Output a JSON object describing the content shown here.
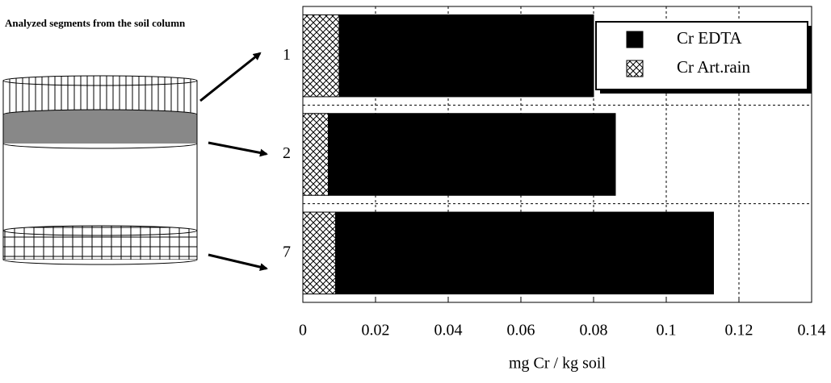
{
  "chart_data": {
    "type": "stacked-bar-horizontal",
    "title": "Analyzed segments from the soil column",
    "x_label": "mg Cr / kg soil",
    "categories": [
      "1",
      "2",
      "7"
    ],
    "series": [
      {
        "name": "Cr EDTA",
        "color": "#000000",
        "values": [
          0.07,
          0.079,
          0.104
        ]
      },
      {
        "name": "Cr Art.rain",
        "color": "#ffffff",
        "hatch": "cross",
        "values": [
          0.01,
          0.007,
          0.009
        ]
      }
    ],
    "xlim": [
      0,
      0.14
    ],
    "xticks": [
      0,
      0.02,
      0.04,
      0.06,
      0.08,
      0.1,
      0.12,
      0.14
    ],
    "grid": true,
    "legend": "top-right"
  }
}
